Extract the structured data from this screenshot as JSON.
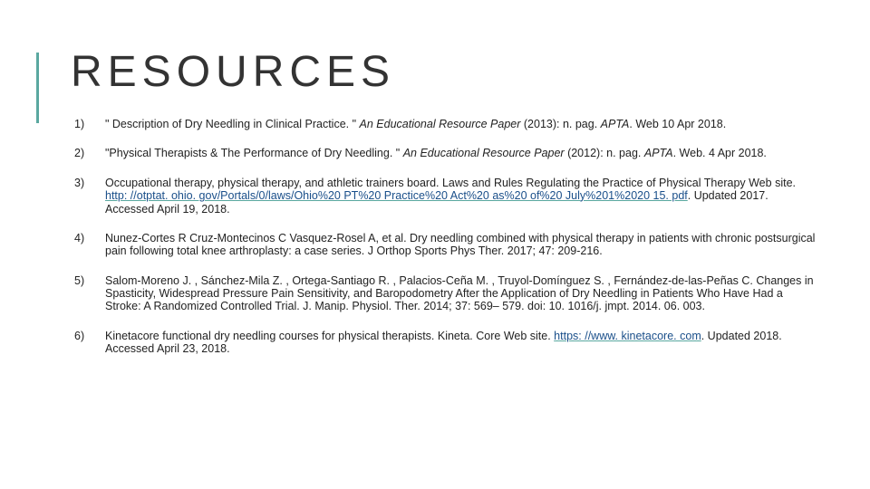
{
  "title": "RESOURCES",
  "accent_color": "#5aa8a0",
  "link_color": "#1a4f8a",
  "text_color": "#222222",
  "title_fontsize": 48,
  "title_letter_spacing": 6,
  "body_fontsize": 12.5,
  "references": [
    {
      "num": "1)",
      "pre": "\" Description of Dry Needling in Clinical Practice. \" ",
      "italic": "An Educational Resource Paper",
      "post": " (2013): n. pag. ",
      "italic2": "APTA",
      "post2": ". Web 10 Apr 2018."
    },
    {
      "num": "2)",
      "pre": "\"Physical Therapists & The Performance of Dry Needling. \" ",
      "italic": "An Educational Resource Paper",
      "post": " (2012): n. pag. ",
      "italic2": "APTA",
      "post2": ". Web. 4 Apr 2018."
    },
    {
      "num": "3)",
      "pre": "Occupational therapy, physical therapy, and athletic trainers board. Laws and Rules Regulating the Practice of Physical Therapy Web site. ",
      "link": "http: //otptat. ohio. gov/Portals/0/laws/Ohio%20 PT%20 Practice%20 Act%20 as%20 of%20 July%201%2020 15. pdf",
      "post3": ". Updated 2017. Accessed April 19, 2018."
    },
    {
      "num": "4)",
      "pre": "Nunez-Cortes R Cruz-Montecinos C Vasquez-Rosel A, et al. Dry needling combined with physical therapy in patients with chronic postsurgical pain following total knee arthroplasty: a case series. J Orthop Sports Phys Ther. 2017; 47: 209-216."
    },
    {
      "num": "5)",
      "pre": "Salom-Moreno J. , Sánchez-Mila Z. , Ortega-Santiago R. , Palacios-Ceña M. , Truyol-Domínguez S. , Fernández-de-las-Peñas C. Changes in Spasticity, Widespread Pressure Pain Sensitivity, and Baropodometry After the Application of Dry Needling in Patients Who Have Had a Stroke: A Randomized Controlled Trial. J. Manip. Physiol. Ther. 2014; 37: 569– 579. doi: 10. 1016/j. jmpt. 2014. 06. 003."
    },
    {
      "num": "6)",
      "pre": "Kinetacore functional dry needling courses for physical therapists. Kineta. Core Web site. ",
      "link": "https: //www. kinetacore. com",
      "post3": ". Updated 2018. Accessed April 23, 2018."
    }
  ]
}
